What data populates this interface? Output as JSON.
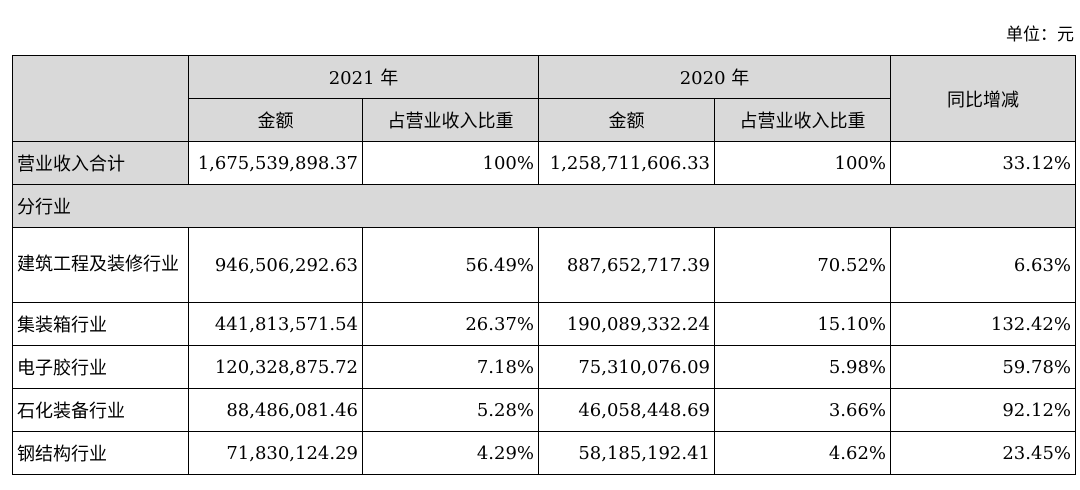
{
  "unit": "单位：元",
  "header": {
    "year_2021": "2021 年",
    "year_2020": "2020 年",
    "yoy": "同比增减",
    "amount": "金额",
    "ratio": "占营业收入比重"
  },
  "total_row": {
    "label": "营业收入合计",
    "amt_2021": "1,675,539,898.37",
    "ratio_2021": "100%",
    "amt_2020": "1,258,711,606.33",
    "ratio_2020": "100%",
    "yoy": "33.12%"
  },
  "section_label": "分行业",
  "rows": [
    {
      "label": "建筑工程及装修行业",
      "amt_2021": "946,506,292.63",
      "ratio_2021": "56.49%",
      "amt_2020": "887,652,717.39",
      "ratio_2020": "70.52%",
      "yoy": "6.63%"
    },
    {
      "label": "集装箱行业",
      "amt_2021": "441,813,571.54",
      "ratio_2021": "26.37%",
      "amt_2020": "190,089,332.24",
      "ratio_2020": "15.10%",
      "yoy": "132.42%"
    },
    {
      "label": "电子胶行业",
      "amt_2021": "120,328,875.72",
      "ratio_2021": "7.18%",
      "amt_2020": "75,310,076.09",
      "ratio_2020": "5.98%",
      "yoy": "59.78%"
    },
    {
      "label": "石化装备行业",
      "amt_2021": "88,486,081.46",
      "ratio_2021": "5.28%",
      "amt_2020": "46,058,448.69",
      "ratio_2020": "3.66%",
      "yoy": "92.12%"
    },
    {
      "label": "钢结构行业",
      "amt_2021": "71,830,124.29",
      "ratio_2021": "4.29%",
      "amt_2020": "58,185,192.41",
      "ratio_2020": "4.62%",
      "yoy": "23.45%"
    }
  ]
}
